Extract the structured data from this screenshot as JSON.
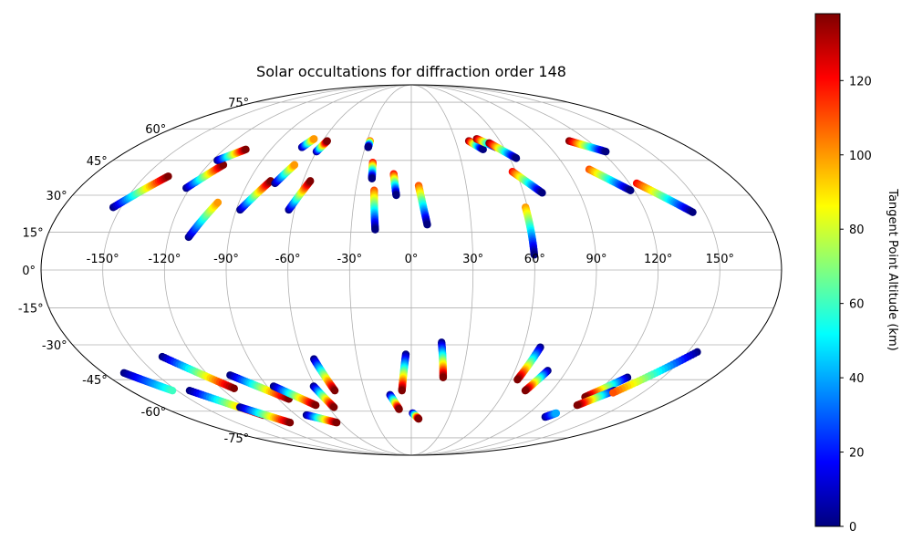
{
  "chart_data": {
    "type": "scatter",
    "title": "Solar occultations for diffraction order 148",
    "projection": "mollweide",
    "grid": true,
    "colormap": "jet",
    "lat_tick_labels": [
      "75°",
      "60°",
      "45°",
      "30°",
      "15°",
      "0°",
      "-15°",
      "-30°",
      "-45°",
      "-60°",
      "-75°"
    ],
    "lat_tick_values": [
      75,
      60,
      45,
      30,
      15,
      0,
      -15,
      -30,
      -45,
      -60,
      -75
    ],
    "lon_tick_labels": [
      "-150°",
      "-120°",
      "-90°",
      "-60°",
      "-30°",
      "0°",
      "30°",
      "60°",
      "90°",
      "120°",
      "150°"
    ],
    "lon_tick_values": [
      -150,
      -120,
      -90,
      -60,
      -30,
      0,
      30,
      60,
      90,
      120,
      150
    ],
    "colorbar": {
      "label": "Tangent Point Altitude (km)",
      "range": [
        0,
        138
      ],
      "tick_labels": [
        "0",
        "20",
        "40",
        "60",
        "80",
        "100",
        "120"
      ],
      "tick_values": [
        0,
        20,
        40,
        60,
        80,
        100,
        120
      ]
    },
    "series": [
      {
        "lon_start": -154,
        "lat_start": 25,
        "lon_end": -137,
        "lat_end": 38,
        "alt_start": 0,
        "alt_end": 138
      },
      {
        "lon_start": -122,
        "lat_start": 33,
        "lon_end": -111,
        "lat_end": 43,
        "alt_start": 0,
        "alt_end": 138
      },
      {
        "lon_start": -117,
        "lat_start": 45,
        "lon_end": -106,
        "lat_end": 50,
        "alt_start": 0,
        "alt_end": 138
      },
      {
        "lon_start": -110,
        "lat_start": 13,
        "lon_end": -101,
        "lat_end": 27,
        "alt_start": 0,
        "alt_end": 100
      },
      {
        "lon_start": -88,
        "lat_start": 24,
        "lon_end": -78,
        "lat_end": 36,
        "alt_start": 0,
        "alt_end": 138
      },
      {
        "lon_start": -75,
        "lat_start": 35,
        "lon_end": -69,
        "lat_end": 43,
        "alt_start": 0,
        "alt_end": 100
      },
      {
        "lon_start": -71,
        "lat_start": 51,
        "lon_end": -67,
        "lat_end": 55,
        "alt_start": 0,
        "alt_end": 100
      },
      {
        "lon_start": -63,
        "lat_start": 24,
        "lon_end": -56,
        "lat_end": 36,
        "alt_start": 0,
        "alt_end": 138
      },
      {
        "lon_start": -60,
        "lat_start": 49,
        "lon_end": -57,
        "lat_end": 54,
        "alt_start": 0,
        "alt_end": 138
      },
      {
        "lon_start": -28,
        "lat_start": 54,
        "lon_end": -28,
        "lat_end": 51,
        "alt_start": 110,
        "alt_end": 0
      },
      {
        "lon_start": -23,
        "lat_start": 44,
        "lon_end": -22,
        "lat_end": 37,
        "alt_start": 120,
        "alt_end": 0
      },
      {
        "lon_start": -20,
        "lat_start": 32,
        "lon_end": -18,
        "lat_end": 16,
        "alt_start": 110,
        "alt_end": 0
      },
      {
        "lon_start": -10,
        "lat_start": 39,
        "lon_end": -8,
        "lat_end": 30,
        "alt_start": 120,
        "alt_end": 0
      },
      {
        "lon_start": 4,
        "lat_start": 34,
        "lon_end": 8,
        "lat_end": 18,
        "alt_start": 110,
        "alt_end": 0
      },
      {
        "lon_start": 39,
        "lat_start": 54,
        "lon_end": 46,
        "lat_end": 50,
        "alt_start": 138,
        "alt_end": 0
      },
      {
        "lon_start": 45,
        "lat_start": 55,
        "lon_end": 55,
        "lat_end": 51,
        "alt_start": 138,
        "alt_end": 0
      },
      {
        "lon_start": 52,
        "lat_start": 53,
        "lon_end": 64,
        "lat_end": 46,
        "alt_start": 138,
        "alt_end": 0
      },
      {
        "lon_start": 58,
        "lat_start": 40,
        "lon_end": 70,
        "lat_end": 31,
        "alt_start": 120,
        "alt_end": 0
      },
      {
        "lon_start": 59,
        "lat_start": 25,
        "lon_end": 60,
        "lat_end": 6,
        "alt_start": 100,
        "alt_end": 0
      },
      {
        "lon_start": 103,
        "lat_start": 41,
        "lon_end": 118,
        "lat_end": 32,
        "alt_start": 110,
        "alt_end": 0
      },
      {
        "lon_start": 107,
        "lat_start": 54,
        "lon_end": 123,
        "lat_end": 49,
        "alt_start": 138,
        "alt_end": 0
      },
      {
        "lon_start": 124,
        "lat_start": 35,
        "lon_end": 144,
        "lat_end": 23,
        "alt_start": 120,
        "alt_end": 0
      },
      {
        "lon_start": -168,
        "lat_start": -42,
        "lon_end": -153,
        "lat_end": -50,
        "alt_start": 0,
        "alt_end": 60
      },
      {
        "lon_start": -137,
        "lat_start": -35,
        "lon_end": -112,
        "lat_end": -49,
        "alt_start": 0,
        "alt_end": 138
      },
      {
        "lon_start": -142,
        "lat_start": -50,
        "lon_end": -116,
        "lat_end": -62,
        "alt_start": 0,
        "alt_end": 138
      },
      {
        "lon_start": -124,
        "lat_start": -58,
        "lon_end": -104,
        "lat_end": -66,
        "alt_start": 0,
        "alt_end": 138
      },
      {
        "lon_start": -107,
        "lat_start": -43,
        "lon_end": -83,
        "lat_end": -54,
        "alt_start": 0,
        "alt_end": 138
      },
      {
        "lon_start": -86,
        "lat_start": -48,
        "lon_end": -68,
        "lat_end": -57,
        "alt_start": 0,
        "alt_end": 138
      },
      {
        "lon_start": -82,
        "lat_start": -62,
        "lon_end": -64,
        "lat_end": -66,
        "alt_start": 0,
        "alt_end": 138
      },
      {
        "lon_start": -61,
        "lat_start": -48,
        "lon_end": -56,
        "lat_end": -58,
        "alt_start": 0,
        "alt_end": 138
      },
      {
        "lon_start": -54,
        "lat_start": -36,
        "lon_end": -49,
        "lat_end": -50,
        "alt_start": 0,
        "alt_end": 138
      },
      {
        "lon_start": -14,
        "lat_start": -52,
        "lon_end": -9,
        "lat_end": -59,
        "alt_start": 0,
        "alt_end": 138
      },
      {
        "lon_start": -3,
        "lat_start": -34,
        "lon_end": -6,
        "lat_end": -50,
        "alt_start": 0,
        "alt_end": 138
      },
      {
        "lon_start": 1,
        "lat_start": -61,
        "lon_end": 6,
        "lat_end": -64,
        "alt_start": 0,
        "alt_end": 138
      },
      {
        "lon_start": 16,
        "lat_start": -29,
        "lon_end": 19,
        "lat_end": -44,
        "alt_start": 0,
        "alt_end": 138
      },
      {
        "lon_start": 69,
        "lat_start": -31,
        "lon_end": 64,
        "lat_end": -45,
        "alt_start": 0,
        "alt_end": 138
      },
      {
        "lon_start": 79,
        "lat_start": -41,
        "lon_end": 73,
        "lat_end": -50,
        "alt_start": 0,
        "alt_end": 138
      },
      {
        "lon_start": 129,
        "lat_start": -44,
        "lon_end": 116,
        "lat_end": -53,
        "alt_start": 0,
        "alt_end": 138
      },
      {
        "lon_start": 130,
        "lat_start": -50,
        "lon_end": 118,
        "lat_end": -57,
        "alt_start": 0,
        "alt_end": 138
      },
      {
        "lon_start": 155,
        "lat_start": -33,
        "lon_end": 131,
        "lat_end": -51,
        "alt_start": 0,
        "alt_end": 110
      },
      {
        "lon_start": 107,
        "lat_start": -63,
        "lon_end": 111,
        "lat_end": -61,
        "alt_start": 0,
        "alt_end": 40
      }
    ]
  }
}
